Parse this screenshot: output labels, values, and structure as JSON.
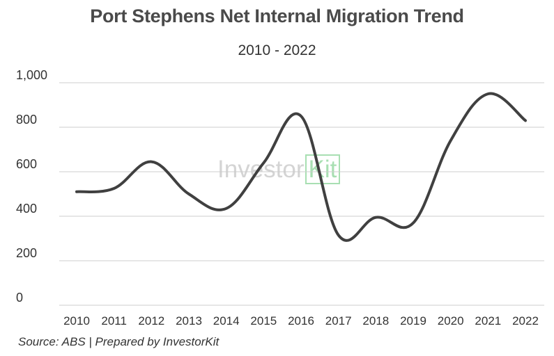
{
  "chart_data": {
    "type": "line",
    "title": "Port Stephens Net Internal Migration Trend",
    "subtitle": "2010 - 2022",
    "x": [
      "2010",
      "2011",
      "2012",
      "2013",
      "2014",
      "2015",
      "2016",
      "2017",
      "2018",
      "2019",
      "2020",
      "2021",
      "2022"
    ],
    "series": [
      {
        "values": [
          510,
          525,
          645,
          500,
          435,
          640,
          850,
          315,
          395,
          370,
          740,
          950,
          830
        ],
        "color": "#404040"
      }
    ],
    "yticks": [
      "0",
      "200",
      "400",
      "600",
      "800",
      "1,000"
    ],
    "ylim": [
      0,
      1000
    ],
    "grid": true,
    "xlabel": "",
    "ylabel": ""
  },
  "source": "Source: ABS | Prepared by InvestorKit",
  "watermark": {
    "text_main": "Investor",
    "text_kit": "Kit"
  }
}
